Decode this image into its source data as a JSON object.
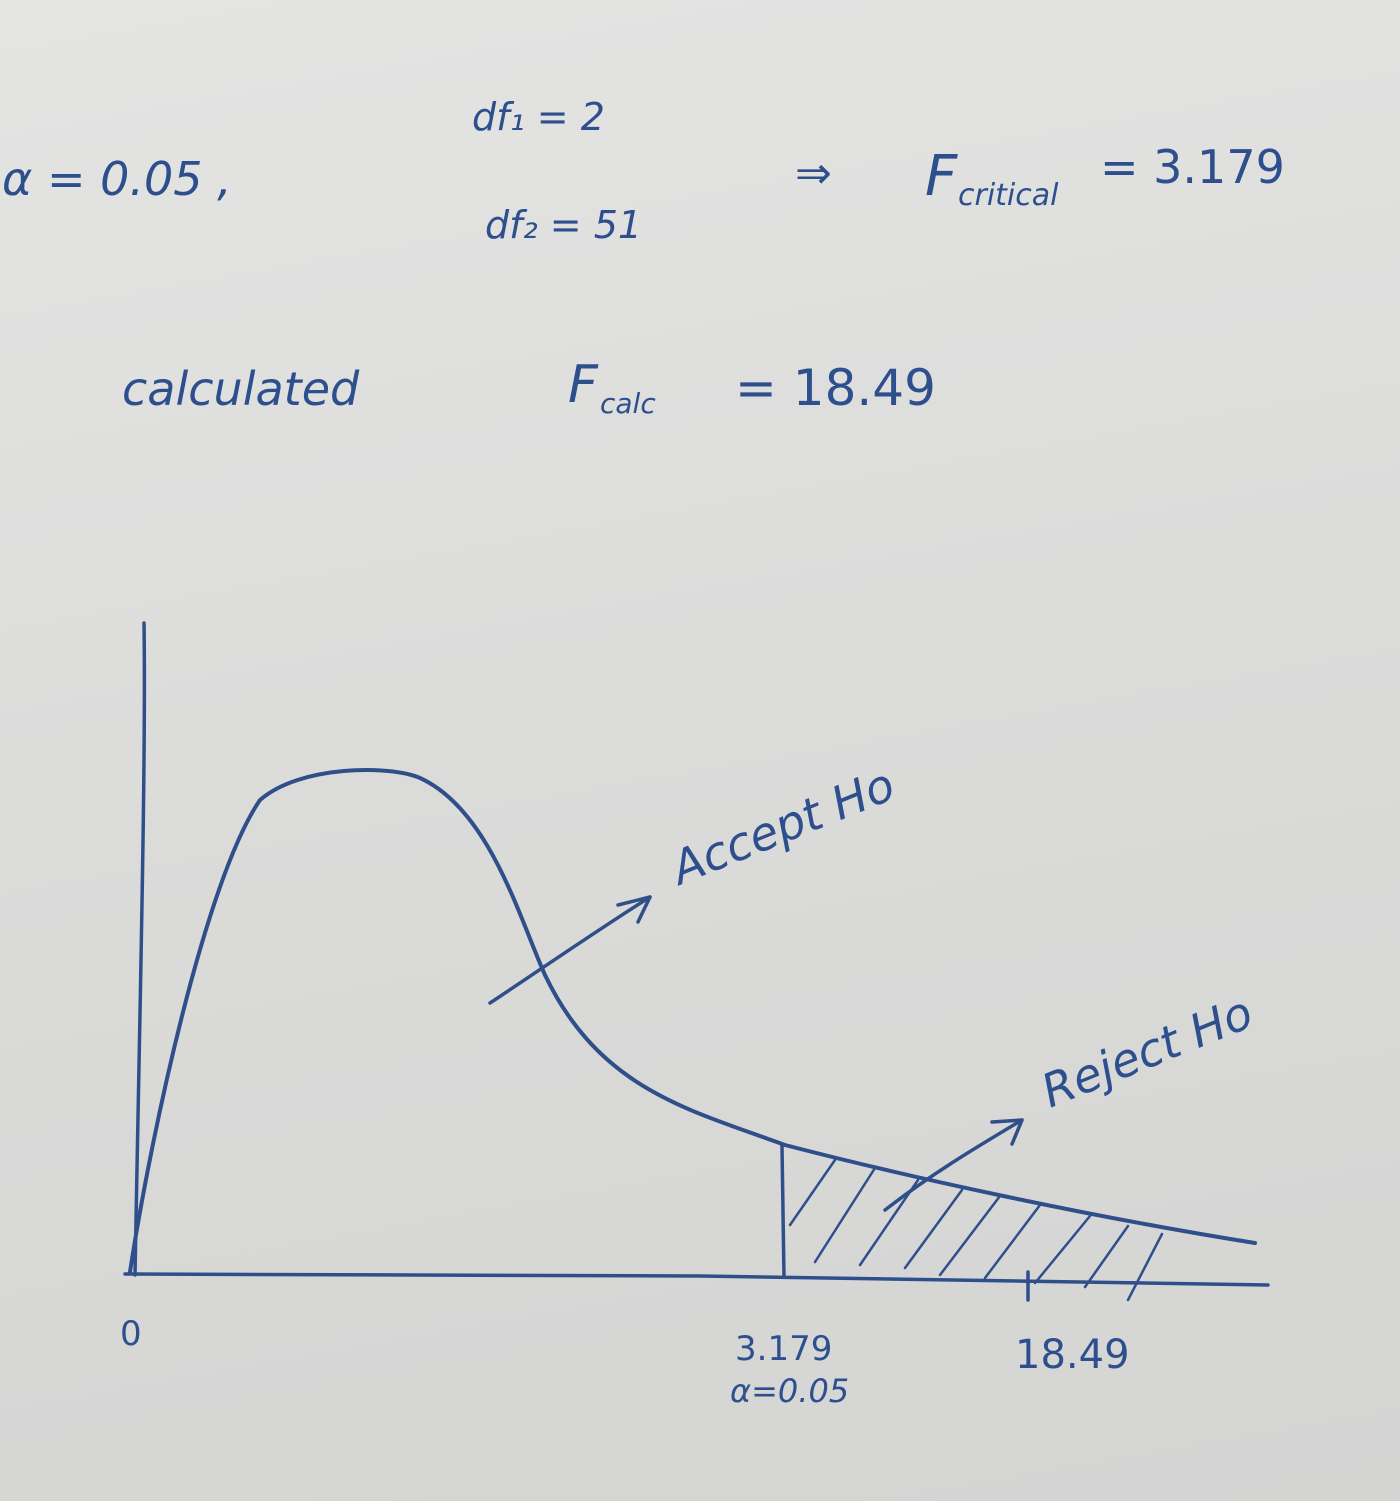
{
  "header": {
    "alpha": "α = 0.05 ,",
    "df1": "df₁ = 2",
    "df2": "df₂ = 51",
    "arrow": "⇒",
    "fcrit_label": "F",
    "fcrit_sub": "critical",
    "fcrit_value": "= 3.179"
  },
  "calc": {
    "label": "calculated",
    "f_label": "F",
    "f_sub": "calc",
    "f_value": "= 18.49"
  },
  "plot": {
    "origin_label": "0",
    "critical_label": "3.179",
    "critical_alpha_label": "α=0.05",
    "calc_label": "18.49",
    "accept_label": "Accept Ho",
    "reject_label": "Reject Ho",
    "ink_color": "#2f4f8a"
  }
}
